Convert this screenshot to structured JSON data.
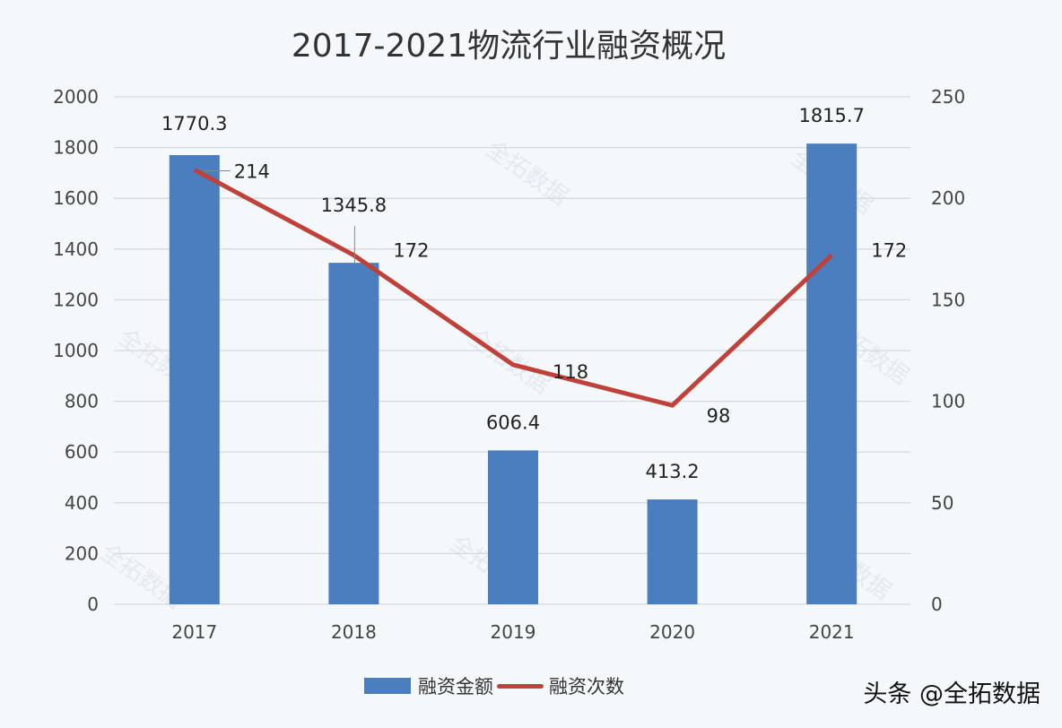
{
  "chart_data": {
    "type": "bar+line",
    "title": "2017-2021物流行业融资概况",
    "categories": [
      "2017",
      "2018",
      "2019",
      "2020",
      "2021"
    ],
    "series": [
      {
        "name": "融资金额",
        "type": "bar",
        "axis": "left",
        "color": "#4a7ebf",
        "values": [
          1770.3,
          1345.8,
          606.4,
          413.2,
          1815.7
        ]
      },
      {
        "name": "融资次数",
        "type": "line",
        "axis": "right",
        "color": "#c0403a",
        "values": [
          214,
          172,
          118,
          98,
          172
        ]
      }
    ],
    "y_left": {
      "ylim": [
        0,
        2000
      ],
      "ticks": [
        0,
        200,
        400,
        600,
        800,
        1000,
        1200,
        1400,
        1600,
        1800,
        2000
      ]
    },
    "y_right": {
      "ylim": [
        0,
        250
      ],
      "ticks": [
        0,
        50,
        100,
        150,
        200,
        250
      ]
    },
    "xlabel": "",
    "ylabel": "",
    "grid": true,
    "legend_position": "bottom"
  },
  "title": "2017-2021物流行业融资概况",
  "legend": {
    "bar_label": "融资金额",
    "line_label": "融资次数"
  },
  "credit": "头条 @全拓数据",
  "watermark": "全拓数据"
}
